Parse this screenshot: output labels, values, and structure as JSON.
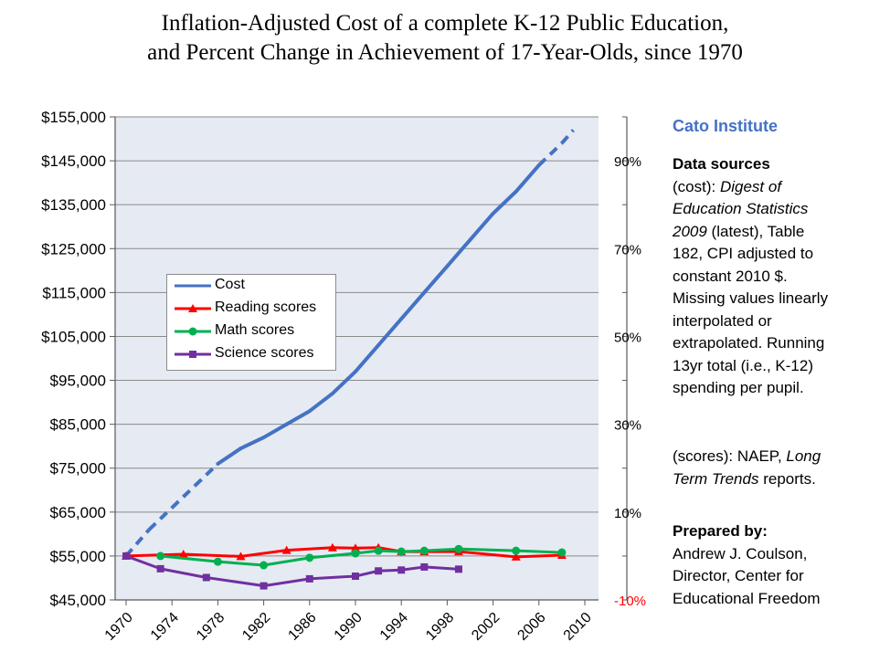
{
  "title_line1": "Inflation-Adjusted Cost of a complete K-12 Public Education,",
  "title_line2": "and Percent Change in Achievement of 17-Year-Olds, since 1970",
  "chart_data": {
    "type": "line",
    "title": "Inflation-Adjusted Cost of a complete K-12 Public Education, and Percent Change in Achievement of 17-Year-Olds, since 1970",
    "xlim": [
      1970,
      2010
    ],
    "x_ticks": [
      1970,
      1974,
      1978,
      1982,
      1986,
      1990,
      1994,
      1998,
      2002,
      2006,
      2010
    ],
    "y_left": {
      "ylim": [
        45000,
        155000
      ],
      "ticks": [
        45000,
        55000,
        65000,
        75000,
        85000,
        95000,
        105000,
        115000,
        125000,
        135000,
        145000,
        155000
      ],
      "tick_labels": [
        "$45,000",
        "$55,000",
        "$65,000",
        "$75,000",
        "$85,000",
        "$95,000",
        "$105,000",
        "$115,000",
        "$125,000",
        "$135,000",
        "$145,000",
        "$155,000"
      ]
    },
    "y_right": {
      "ylim": [
        -10,
        100
      ],
      "ticks": [
        -10,
        10,
        30,
        50,
        70,
        90
      ],
      "tick_labels": [
        "-10%",
        "10%",
        "30%",
        "50%",
        "70%",
        "90%"
      ]
    },
    "grid": "horizontal",
    "legend_position": "center-left",
    "series": [
      {
        "name": "Cost",
        "axis": "left",
        "color": "#4472c4",
        "marker": "none",
        "dashed_x": [
          [
            1970,
            1978
          ],
          [
            2006,
            2009
          ]
        ],
        "points": [
          [
            1970,
            55000
          ],
          [
            1972,
            61000
          ],
          [
            1974,
            66000
          ],
          [
            1976,
            71000
          ],
          [
            1978,
            76000
          ],
          [
            1980,
            79500
          ],
          [
            1982,
            82000
          ],
          [
            1984,
            85000
          ],
          [
            1986,
            88000
          ],
          [
            1988,
            92000
          ],
          [
            1990,
            97000
          ],
          [
            1992,
            103000
          ],
          [
            1994,
            109000
          ],
          [
            1996,
            115000
          ],
          [
            1998,
            121000
          ],
          [
            2000,
            127000
          ],
          [
            2002,
            133000
          ],
          [
            2004,
            138000
          ],
          [
            2006,
            144000
          ],
          [
            2008,
            149000
          ],
          [
            2009,
            152000
          ]
        ]
      },
      {
        "name": "Reading scores",
        "axis": "right",
        "color": "#ff0000",
        "marker": "triangle",
        "points": [
          [
            1970,
            0
          ],
          [
            1975,
            0.4
          ],
          [
            1980,
            -0.1
          ],
          [
            1984,
            1.3
          ],
          [
            1988,
            1.9
          ],
          [
            1990,
            1.8
          ],
          [
            1992,
            1.9
          ],
          [
            1994,
            1.0
          ],
          [
            1996,
            1.0
          ],
          [
            1999,
            1.0
          ],
          [
            2004,
            -0.2
          ],
          [
            2008,
            0.2
          ]
        ]
      },
      {
        "name": "Math scores",
        "axis": "right",
        "color": "#00b050",
        "marker": "circle",
        "points": [
          [
            1973,
            0
          ],
          [
            1978,
            -1.3
          ],
          [
            1982,
            -2.1
          ],
          [
            1986,
            -0.4
          ],
          [
            1990,
            0.6
          ],
          [
            1992,
            1.2
          ],
          [
            1994,
            1.0
          ],
          [
            1996,
            1.2
          ],
          [
            1999,
            1.6
          ],
          [
            2004,
            1.2
          ],
          [
            2008,
            0.8
          ]
        ]
      },
      {
        "name": "Science scores",
        "axis": "right",
        "color": "#7030a0",
        "marker": "square",
        "points": [
          [
            1970,
            0
          ],
          [
            1973,
            -2.9
          ],
          [
            1977,
            -4.9
          ],
          [
            1982,
            -6.8
          ],
          [
            1986,
            -5.2
          ],
          [
            1990,
            -4.6
          ],
          [
            1992,
            -3.4
          ],
          [
            1994,
            -3.2
          ],
          [
            1996,
            -2.5
          ],
          [
            1999,
            -3.0
          ]
        ]
      }
    ]
  },
  "sidebar": {
    "org": "Cato Institute",
    "sources_heading": "Data sources",
    "cost_lines": [
      "(cost): ",
      "Digest of",
      "Education Statistics",
      "2009",
      " (latest), Table",
      "182, CPI adjusted to",
      "constant 2010 $.",
      "Missing values linearly",
      "interpolated or",
      "extrapolated. Running",
      "13yr total (i.e., K-12)",
      "spending per pupil."
    ],
    "scores_lines": [
      "(scores): NAEP, ",
      "Long",
      "Term Trends",
      " reports."
    ],
    "prepared_heading": "Prepared by:",
    "prepared_lines": [
      "Andrew J. Coulson,",
      "Director, Center for",
      "Educational Freedom"
    ]
  }
}
